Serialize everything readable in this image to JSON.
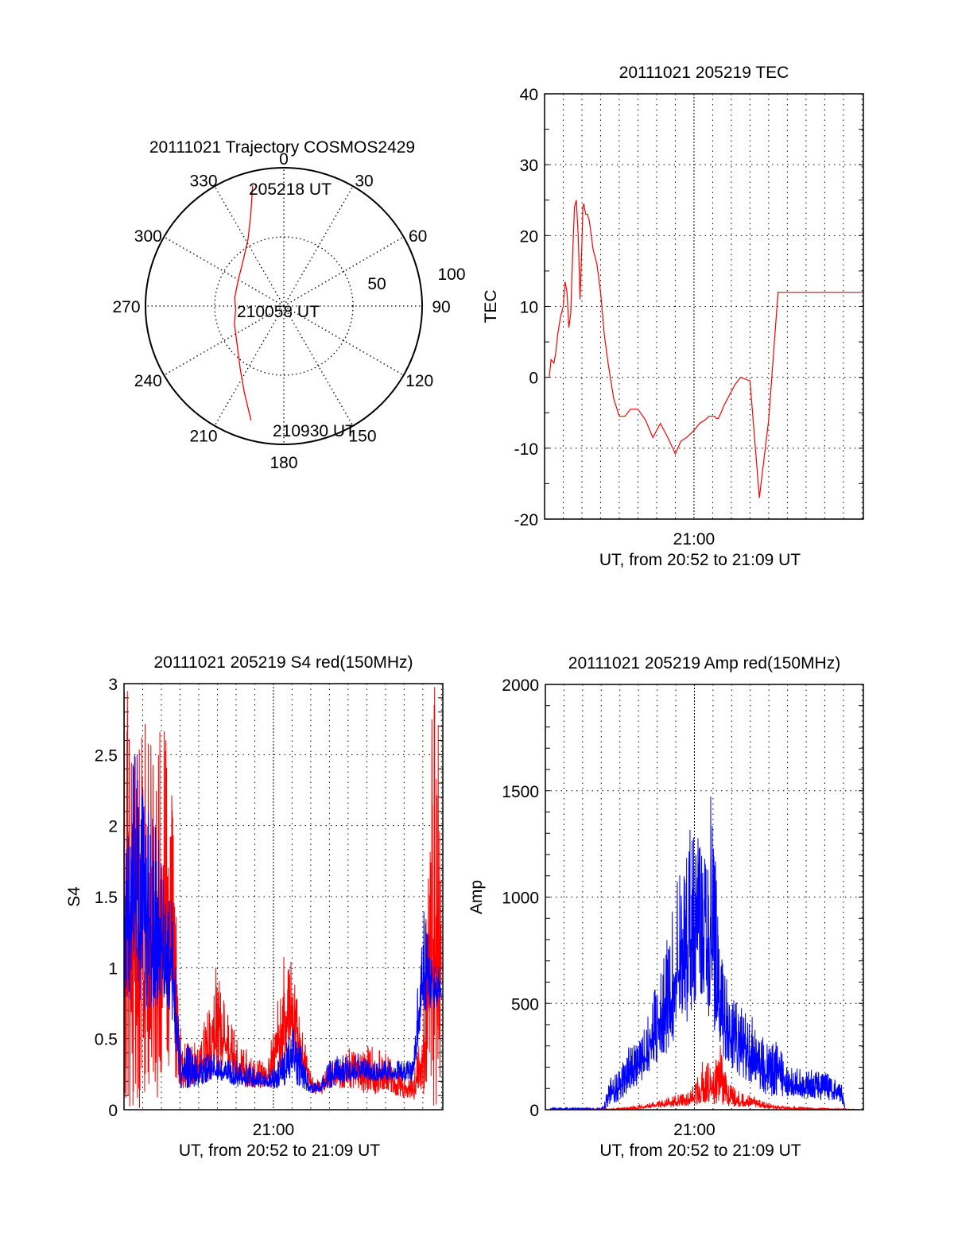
{
  "chart_data": [
    {
      "id": "trajectory",
      "type": "polar",
      "title": "20111021 Trajectory COSMOS2429",
      "angle_labels": [
        "0",
        "30",
        "60",
        "90",
        "120",
        "150",
        "180",
        "210",
        "240",
        "270",
        "300",
        "330"
      ],
      "radial_labels": [
        "50",
        "100"
      ],
      "radial_range": [
        0,
        100
      ],
      "annotations": [
        {
          "text": "205218 UT",
          "azimuth": 345,
          "r": 84
        },
        {
          "text": "210058 UT",
          "azimuth": 270,
          "r": 34
        },
        {
          "text": "210930 UT",
          "azimuth": 190,
          "r": 88
        }
      ],
      "series": [
        {
          "name": "trajectory",
          "color": "#ff0000",
          "points_az_r": [
            [
              345.5,
              90
            ],
            [
              340,
              70
            ],
            [
              332,
              55
            ],
            [
              318,
              44
            ],
            [
              300,
              38
            ],
            [
              280,
              36
            ],
            [
              265,
              35
            ],
            [
              250,
              38
            ],
            [
              230,
              44
            ],
            [
              215,
              55
            ],
            [
              205,
              68
            ],
            [
              196,
              86
            ]
          ]
        }
      ]
    },
    {
      "id": "tec",
      "type": "line",
      "title": "20111021 205219 TEC",
      "xlabel_tick": "21:00",
      "xlabel": "UT, from 20:52 to 21:09 UT",
      "ylabel": "TEC",
      "xlim_min": [
        0,
        17.07
      ],
      "ylim": [
        -20,
        40
      ],
      "yticks": [
        "-20",
        "-10",
        "0",
        "10",
        "20",
        "30",
        "40"
      ],
      "grid": true,
      "series": [
        {
          "name": "TEC",
          "color": "#ff0000",
          "x_min": [
            0.25,
            0.35,
            0.5,
            0.6,
            0.7,
            0.85,
            1.0,
            1.1,
            1.2,
            1.3,
            1.4,
            1.5,
            1.6,
            1.7,
            1.8,
            1.9,
            2.0,
            2.05,
            2.1,
            2.2,
            2.3,
            2.4,
            2.5,
            2.6,
            2.7,
            2.75,
            2.8,
            2.9,
            3.0,
            3.1,
            3.2,
            3.4,
            3.7,
            4.0,
            4.3,
            4.6,
            5.0,
            5.4,
            5.8,
            6.2,
            6.6,
            7.0,
            7.3,
            7.6,
            8.0,
            8.3,
            8.6,
            8.8,
            9.0,
            9.1,
            9.2,
            9.3,
            9.45,
            9.6,
            9.8,
            10.0,
            10.2,
            10.5,
            11.0,
            11.5,
            12.0,
            12.5,
            13.0,
            13.5,
            14.0,
            14.5,
            15.0,
            15.5,
            15.85,
            16.0,
            16.15,
            16.3,
            16.5,
            16.7,
            16.9,
            17.05
          ],
          "y": [
            0,
            2.5,
            2.0,
            3.5,
            6,
            8.5,
            10,
            13.5,
            12,
            7,
            9,
            17,
            24,
            25,
            20,
            11,
            19,
            24,
            24.5,
            23,
            23,
            22,
            20,
            18,
            17,
            16.5,
            16,
            14,
            12,
            9,
            6,
            2,
            -3,
            -5.5,
            -5.5,
            -4.5,
            -4.5,
            -6,
            -8.5,
            -6.5,
            -8.5,
            -10.8,
            -9,
            -8.5,
            -7.5,
            -6.5,
            -6,
            -5.5,
            -5.5,
            -5.5,
            -5.8,
            -5.8,
            -5,
            -4,
            -3,
            -2,
            -1,
            0,
            -0.5,
            -17,
            -6,
            12,
            12,
            12,
            12,
            12,
            12,
            12,
            12,
            12,
            12,
            12,
            12,
            12,
            12,
            12
          ]
        }
      ]
    },
    {
      "id": "s4",
      "type": "line",
      "title": "20111021 205219 S4 red(150MHz)",
      "xlabel_tick": "21:00",
      "xlabel": "UT, from 20:52 to 21:09 UT",
      "ylabel": "S4",
      "xlim_min": [
        0,
        17.07
      ],
      "ylim": [
        0,
        3
      ],
      "yticks": [
        "0",
        "0.5",
        "1",
        "1.5",
        "2",
        "2.5",
        "3"
      ],
      "grid": true,
      "series": [
        {
          "name": "S4 red (150MHz)",
          "color": "#ff0000",
          "envelope_x_min": [
            0.0,
            0.5,
            1.5,
            2.5,
            3.0,
            3.5,
            4.0,
            4.5,
            5.0,
            5.5,
            6.0,
            6.5,
            7.0,
            7.5,
            8.0,
            8.5,
            9.0,
            9.5,
            10.0,
            10.5,
            11.0,
            11.5,
            12.0,
            12.5,
            13.0,
            13.5,
            14.0,
            14.5,
            15.0,
            15.5,
            16.0,
            16.5,
            17.0
          ],
          "envelope_high": [
            3.0,
            3.0,
            3.0,
            2.5,
            0.6,
            0.45,
            0.5,
            0.7,
            1.1,
            0.7,
            0.55,
            0.45,
            0.35,
            0.35,
            0.55,
            1.1,
            1.1,
            0.6,
            0.25,
            0.2,
            0.35,
            0.4,
            0.45,
            0.4,
            0.45,
            0.45,
            0.4,
            0.35,
            0.3,
            0.25,
            0.6,
            3.0,
            3.0
          ],
          "envelope_low": [
            0.0,
            0.0,
            0.0,
            0.3,
            0.15,
            0.15,
            0.2,
            0.2,
            0.25,
            0.25,
            0.2,
            0.15,
            0.15,
            0.15,
            0.15,
            0.3,
            0.35,
            0.25,
            0.12,
            0.1,
            0.15,
            0.15,
            0.15,
            0.15,
            0.1,
            0.1,
            0.15,
            0.1,
            0.08,
            0.06,
            0.1,
            0.0,
            0.0
          ]
        },
        {
          "name": "S4 blue",
          "color": "#0000ff",
          "envelope_x_min": [
            0.0,
            0.5,
            1.5,
            2.5,
            3.0,
            3.5,
            4.0,
            4.5,
            5.0,
            5.5,
            6.0,
            6.5,
            7.0,
            7.5,
            8.0,
            8.5,
            9.0,
            9.5,
            10.0,
            10.5,
            11.0,
            11.5,
            12.0,
            12.5,
            13.0,
            13.5,
            14.0,
            14.5,
            15.0,
            15.5,
            16.0,
            16.5,
            17.0
          ],
          "envelope_high": [
            1.6,
            2.6,
            2.1,
            1.6,
            0.5,
            0.45,
            0.4,
            0.4,
            0.4,
            0.35,
            0.35,
            0.35,
            0.3,
            0.25,
            0.3,
            0.4,
            0.6,
            0.45,
            0.2,
            0.2,
            0.35,
            0.4,
            0.4,
            0.4,
            0.35,
            0.35,
            0.35,
            0.35,
            0.35,
            0.35,
            1.5,
            1.05,
            1.0
          ],
          "envelope_low": [
            0.8,
            0.7,
            0.7,
            0.7,
            0.15,
            0.15,
            0.15,
            0.2,
            0.2,
            0.2,
            0.15,
            0.15,
            0.15,
            0.15,
            0.15,
            0.15,
            0.2,
            0.15,
            0.12,
            0.12,
            0.15,
            0.15,
            0.2,
            0.2,
            0.2,
            0.2,
            0.2,
            0.2,
            0.2,
            0.2,
            0.7,
            0.7,
            0.75
          ]
        }
      ]
    },
    {
      "id": "amp",
      "type": "line",
      "title": "20111021 205219 Amp red(150MHz)",
      "xlabel_tick": "21:00",
      "xlabel": "UT, from 20:52 to 21:09 UT",
      "ylabel": "Amp",
      "xlim_min": [
        0,
        17.07
      ],
      "ylim": [
        0,
        2000
      ],
      "yticks": [
        "0",
        "500",
        "1000",
        "1500",
        "2000"
      ],
      "grid": true,
      "series": [
        {
          "name": "Amp blue",
          "color": "#0000ff",
          "envelope_x_min": [
            0.25,
            1.0,
            2.0,
            3.0,
            3.2,
            3.5,
            4.0,
            4.5,
            5.0,
            5.5,
            6.0,
            6.5,
            7.0,
            7.5,
            7.9,
            8.2,
            8.5,
            8.9,
            9.2,
            9.5,
            10.0,
            10.5,
            11.0,
            11.5,
            12.0,
            12.5,
            13.0,
            13.5,
            14.0,
            14.5,
            15.0,
            15.5,
            15.9,
            16.1,
            17.05
          ],
          "envelope_high": [
            10,
            10,
            10,
            10,
            50,
            150,
            200,
            300,
            350,
            450,
            700,
            900,
            1070,
            1180,
            1450,
            1300,
            1250,
            1500,
            1100,
            700,
            550,
            500,
            450,
            400,
            300,
            350,
            200,
            200,
            200,
            180,
            180,
            150,
            120,
            0,
            0
          ],
          "envelope_low": [
            0,
            0,
            0,
            0,
            0,
            20,
            40,
            80,
            120,
            150,
            200,
            250,
            350,
            400,
            450,
            550,
            500,
            400,
            350,
            250,
            200,
            150,
            100,
            80,
            60,
            60,
            60,
            60,
            50,
            50,
            40,
            40,
            30,
            0,
            0
          ]
        },
        {
          "name": "Amp red",
          "color": "#ff0000",
          "envelope_x_min": [
            0.25,
            3.5,
            4.5,
            5.5,
            6.5,
            7.5,
            8.0,
            8.5,
            9.0,
            9.3,
            9.6,
            10.0,
            10.5,
            11.0,
            11.5,
            12.0,
            12.5,
            13.0,
            13.5,
            14.0,
            14.5,
            15.0,
            15.5,
            16.0,
            17.05
          ],
          "envelope_high": [
            0,
            5,
            15,
            30,
            60,
            80,
            120,
            260,
            200,
            350,
            200,
            120,
            80,
            70,
            50,
            30,
            20,
            15,
            15,
            10,
            8,
            8,
            5,
            5,
            0
          ],
          "envelope_low": [
            0,
            0,
            0,
            5,
            10,
            15,
            20,
            30,
            20,
            30,
            20,
            15,
            10,
            10,
            8,
            5,
            3,
            2,
            2,
            1,
            1,
            1,
            0,
            0,
            0
          ]
        }
      ]
    }
  ]
}
